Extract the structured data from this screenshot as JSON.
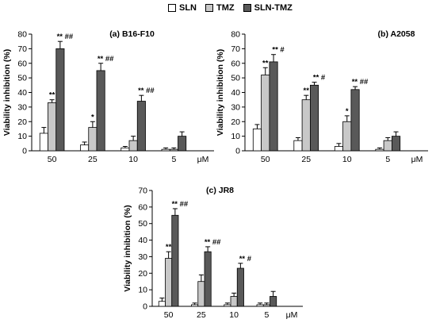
{
  "legend": {
    "entries": [
      {
        "label": "SLN",
        "color": "#ffffff"
      },
      {
        "label": "TMZ",
        "color": "#c8c8c8"
      },
      {
        "label": "SLN-TMZ",
        "color": "#595959"
      }
    ]
  },
  "chart_data": [
    {
      "type": "bar",
      "title": "(a) B16-F10",
      "ylabel": "Viability inhibition (%)",
      "xlabel": "μM",
      "ylim": [
        0,
        80
      ],
      "yticks": [
        0,
        10,
        20,
        30,
        40,
        50,
        60,
        70,
        80
      ],
      "categories": [
        "50",
        "25",
        "10",
        "5"
      ],
      "series": [
        {
          "name": "SLN",
          "values": [
            12,
            4,
            2,
            1
          ],
          "errors": [
            4,
            2,
            1,
            1
          ],
          "labels": [
            "",
            "",
            "",
            ""
          ]
        },
        {
          "name": "TMZ",
          "values": [
            33,
            16,
            7,
            1
          ],
          "errors": [
            2,
            4,
            3,
            1
          ],
          "labels": [
            "**",
            "*",
            "",
            ""
          ]
        },
        {
          "name": "SLN-TMZ",
          "values": [
            70,
            55,
            34,
            10
          ],
          "errors": [
            5,
            5,
            4,
            3
          ],
          "labels": [
            "** ##",
            "** ##",
            "** ##",
            ""
          ]
        }
      ]
    },
    {
      "type": "bar",
      "title": "(b) A2058",
      "ylabel": "Viability inhibition (%)",
      "xlabel": "μM",
      "ylim": [
        0,
        80
      ],
      "yticks": [
        0,
        10,
        20,
        30,
        40,
        50,
        60,
        70,
        80
      ],
      "categories": [
        "50",
        "25",
        "10",
        "5"
      ],
      "series": [
        {
          "name": "SLN",
          "values": [
            15,
            7,
            3,
            1
          ],
          "errors": [
            3,
            2,
            2,
            1
          ],
          "labels": [
            "",
            "",
            "",
            ""
          ]
        },
        {
          "name": "TMZ",
          "values": [
            52,
            35,
            20,
            7
          ],
          "errors": [
            5,
            3,
            4,
            2
          ],
          "labels": [
            "**",
            "**",
            "*",
            ""
          ]
        },
        {
          "name": "SLN-TMZ",
          "values": [
            61,
            45,
            42,
            10
          ],
          "errors": [
            5,
            2,
            2,
            3
          ],
          "labels": [
            "** #",
            "** #",
            "** ##",
            ""
          ]
        }
      ]
    },
    {
      "type": "bar",
      "title": "(c) JR8",
      "ylabel": "Viability inhibition (%)",
      "xlabel": "μM",
      "ylim": [
        0,
        70
      ],
      "yticks": [
        0,
        10,
        20,
        30,
        40,
        50,
        60,
        70
      ],
      "categories": [
        "50",
        "25",
        "10",
        "5"
      ],
      "series": [
        {
          "name": "SLN",
          "values": [
            3,
            1,
            1,
            1
          ],
          "errors": [
            2,
            1,
            1,
            1
          ],
          "labels": [
            "",
            "",
            "",
            ""
          ]
        },
        {
          "name": "TMZ",
          "values": [
            29,
            15,
            6,
            1
          ],
          "errors": [
            4,
            4,
            2,
            1
          ],
          "labels": [
            "**",
            "",
            "",
            ""
          ]
        },
        {
          "name": "SLN-TMZ",
          "values": [
            55,
            33,
            23,
            6
          ],
          "errors": [
            4,
            3,
            3,
            3
          ],
          "labels": [
            "** ##",
            "** ##",
            "** #",
            ""
          ]
        }
      ]
    }
  ]
}
